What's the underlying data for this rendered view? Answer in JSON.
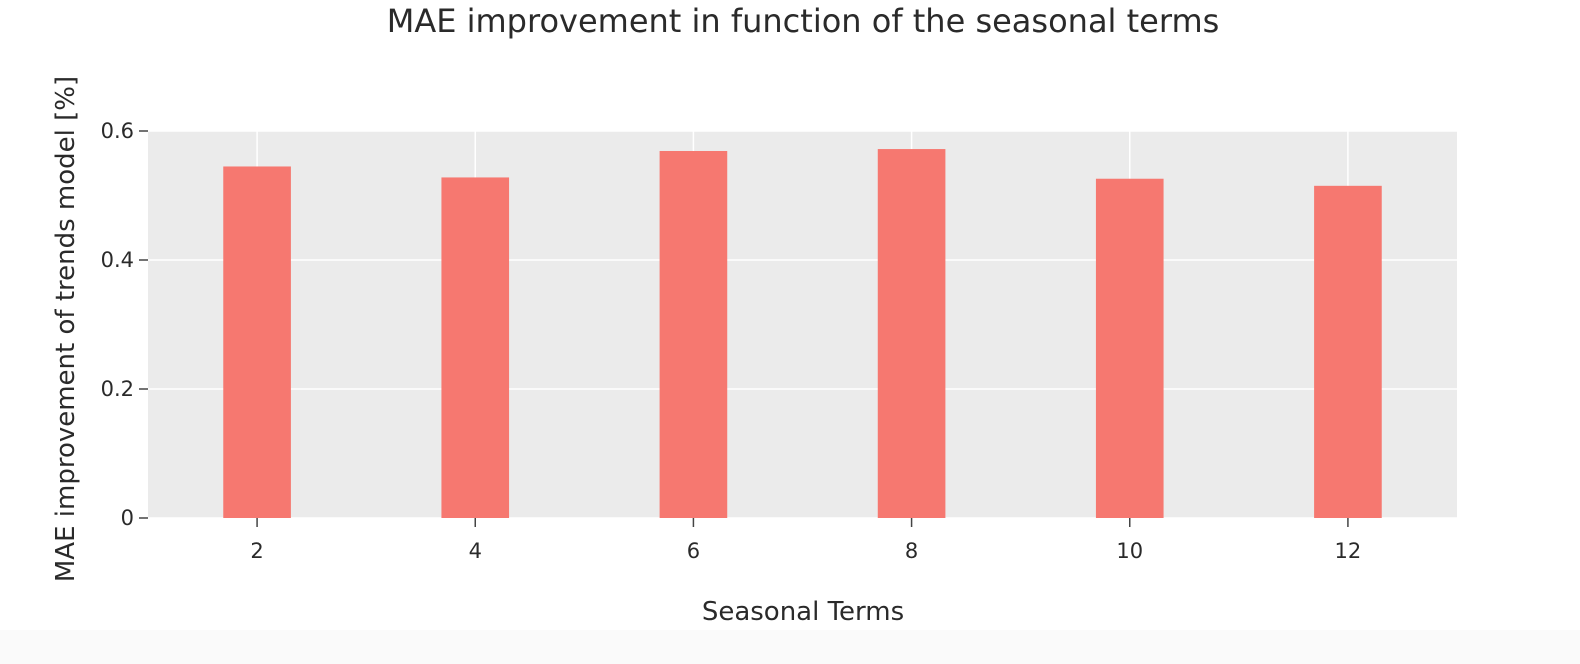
{
  "chart_data": {
    "type": "bar",
    "title": "MAE improvement in function of the seasonal terms",
    "xlabel": "Seasonal Terms",
    "ylabel": "MAE improvement of trends model [%]",
    "categories": [
      "2",
      "4",
      "6",
      "8",
      "10",
      "12"
    ],
    "x": [
      2,
      4,
      6,
      8,
      10,
      12
    ],
    "values": [
      0.545,
      0.528,
      0.569,
      0.572,
      0.526,
      0.515
    ],
    "xlim": [
      1,
      13
    ],
    "ylim": [
      0,
      0.6
    ],
    "yticks": [
      0,
      0.2,
      0.4,
      0.6
    ],
    "ytick_labels": [
      "0",
      "0.2",
      "0.4",
      "0.6"
    ],
    "xticks": [
      2,
      4,
      6,
      8,
      10,
      12
    ],
    "xtick_labels": [
      "2",
      "4",
      "6",
      "8",
      "10",
      "12"
    ],
    "grid": true,
    "legend": false,
    "colors": {
      "bar": "#F67870",
      "plot_background": "#EBEBEB",
      "gridline": "#FFFFFF",
      "text": "#2A2A2A",
      "tick_mark": "#444444"
    }
  }
}
